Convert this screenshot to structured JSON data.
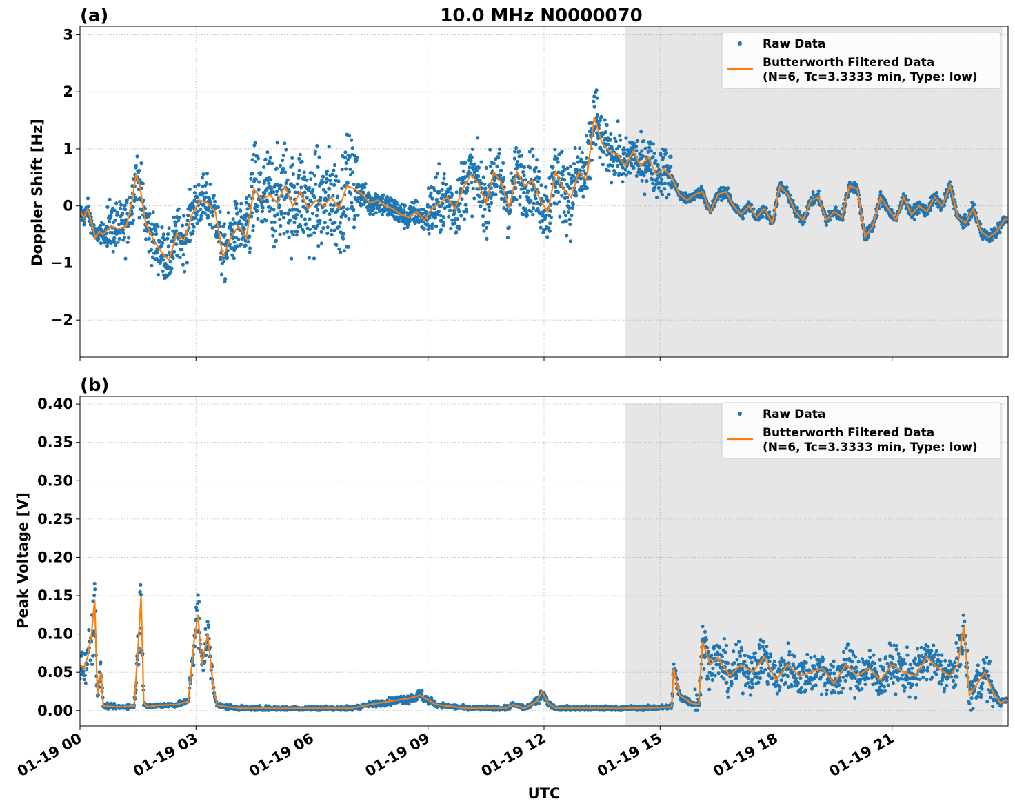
{
  "figure": {
    "title": "10.0 MHz N0000070",
    "xlabel": "UTC",
    "x_tick_labels": [
      "01-19 00",
      "01-19 03",
      "01-19 06",
      "01-19 09",
      "01-19 12",
      "01-19 15",
      "01-19 18",
      "01-19 21"
    ],
    "shaded_region": {
      "start_hour": 14.1,
      "end_hour": 23.85,
      "color": "#e6e6e6"
    },
    "colors": {
      "raw": "#1f77b4",
      "filtered": "#ff7f0e",
      "grid": "#b0b0b0"
    }
  },
  "chart_data": [
    {
      "panel_label": "(a)",
      "type": "scatter",
      "ylabel": "Doppler Shift [Hz]",
      "xlim_hours": [
        0,
        24
      ],
      "ylim": [
        -2.65,
        3.15
      ],
      "y_ticks": [
        -2,
        -1,
        0,
        1,
        2,
        3
      ],
      "y_tick_labels": [
        "−2",
        "−1",
        "0",
        "1",
        "2",
        "3"
      ],
      "legend": {
        "placement": "upper right",
        "raw_label": "Raw Data",
        "filtered_label_1": "Butterworth Filtered Data",
        "filtered_label_2": "(N=6, Tc=3.3333 min, Type: low)"
      },
      "series": [
        {
          "name": "Butterworth Filtered Data",
          "kind": "line",
          "x_hours": [
            0,
            0.1,
            0.2,
            0.3,
            0.4,
            0.5,
            0.6,
            0.8,
            1.0,
            1.2,
            1.35,
            1.45,
            1.55,
            1.7,
            1.9,
            2.1,
            2.3,
            2.5,
            2.7,
            2.9,
            3.1,
            3.3,
            3.5,
            3.7,
            3.9,
            4.1,
            4.3,
            4.5,
            4.7,
            4.9,
            5.1,
            5.3,
            5.5,
            5.7,
            5.9,
            6.1,
            6.3,
            6.5,
            6.7,
            6.9,
            7.1,
            7.3,
            7.5,
            7.7,
            7.9,
            8.1,
            8.3,
            8.5,
            8.7,
            8.9,
            9.1,
            9.3,
            9.5,
            9.7,
            9.9,
            10.1,
            10.3,
            10.5,
            10.7,
            10.9,
            11.1,
            11.3,
            11.5,
            11.7,
            11.9,
            12.1,
            12.3,
            12.5,
            12.7,
            12.9,
            13.1,
            13.3,
            13.5,
            13.7,
            13.9,
            14.1,
            14.3,
            14.5,
            14.7,
            14.9,
            15.1,
            15.3,
            15.5,
            15.7,
            15.9,
            16.1,
            16.3,
            16.5,
            16.7,
            16.9,
            17.1,
            17.3,
            17.5,
            17.7,
            17.9,
            18.1,
            18.3,
            18.5,
            18.7,
            18.9,
            19.1,
            19.3,
            19.5,
            19.7,
            19.9,
            20.1,
            20.3,
            20.5,
            20.7,
            20.9,
            21.1,
            21.3,
            21.5,
            21.7,
            21.9,
            22.1,
            22.3,
            22.5,
            22.7,
            22.9,
            23.1,
            23.3,
            23.5,
            23.7,
            23.9,
            24.0
          ],
          "values": [
            -0.1,
            -0.2,
            -0.05,
            -0.3,
            -0.55,
            -0.45,
            -0.5,
            -0.35,
            -0.4,
            -0.35,
            0.1,
            0.55,
            0.35,
            -0.3,
            -0.6,
            -0.8,
            -0.95,
            -0.5,
            -0.6,
            -0.15,
            0.1,
            0.05,
            -0.1,
            -0.9,
            -0.55,
            -0.35,
            -0.55,
            0.3,
            0.1,
            0.2,
            0.05,
            0.35,
            0.0,
            0.25,
            -0.05,
            0.1,
            0.0,
            0.15,
            -0.05,
            0.35,
            0.3,
            0.2,
            0.05,
            0.1,
            0.0,
            -0.05,
            -0.15,
            -0.2,
            -0.1,
            -0.25,
            -0.05,
            0.05,
            0.15,
            -0.05,
            0.3,
            0.55,
            0.4,
            0.05,
            0.6,
            0.4,
            -0.05,
            0.6,
            0.35,
            0.45,
            0.1,
            -0.1,
            0.6,
            0.3,
            0.15,
            0.6,
            0.45,
            1.55,
            1.1,
            0.95,
            0.9,
            0.7,
            0.95,
            0.7,
            0.85,
            0.55,
            0.65,
            0.5,
            0.2,
            0.1,
            0.2,
            0.25,
            -0.1,
            0.2,
            0.25,
            0.0,
            -0.15,
            0.0,
            -0.2,
            -0.05,
            -0.3,
            0.35,
            0.2,
            -0.1,
            -0.25,
            0.1,
            0.15,
            -0.25,
            -0.1,
            -0.2,
            0.35,
            0.3,
            -0.55,
            -0.35,
            0.15,
            -0.05,
            -0.25,
            0.15,
            -0.15,
            0.0,
            -0.1,
            0.15,
            0.0,
            0.35,
            -0.2,
            -0.3,
            -0.05,
            -0.45,
            -0.55,
            -0.45,
            -0.25,
            -0.2
          ]
        }
      ]
    },
    {
      "panel_label": "(b)",
      "type": "scatter",
      "ylabel": "Peak Voltage [V]",
      "xlim_hours": [
        0,
        24
      ],
      "ylim": [
        -0.02,
        0.41
      ],
      "y_ticks": [
        0.0,
        0.05,
        0.1,
        0.15,
        0.2,
        0.25,
        0.3,
        0.35,
        0.4
      ],
      "y_tick_labels": [
        "0.00",
        "0.05",
        "0.10",
        "0.15",
        "0.20",
        "0.25",
        "0.30",
        "0.35",
        "0.40"
      ],
      "legend": {
        "placement": "upper right",
        "raw_label": "Raw Data",
        "filtered_label_1": "Butterworth Filtered Data",
        "filtered_label_2": "(N=6, Tc=3.3333 min, Type: low)"
      },
      "series": [
        {
          "name": "Butterworth Filtered Data",
          "kind": "line",
          "x_hours": [
            0,
            0.1,
            0.2,
            0.3,
            0.38,
            0.45,
            0.5,
            0.55,
            0.6,
            1.0,
            1.4,
            1.5,
            1.58,
            1.65,
            1.75,
            2.0,
            2.5,
            2.8,
            2.95,
            3.05,
            3.15,
            3.3,
            3.45,
            3.55,
            3.8,
            4.2,
            5.0,
            6.0,
            7.0,
            7.5,
            8.0,
            8.5,
            8.8,
            9.2,
            10.0,
            11.0,
            11.2,
            11.5,
            11.8,
            11.95,
            12.1,
            12.3,
            13.0,
            14.0,
            15.0,
            15.3,
            15.35,
            15.5,
            15.8,
            16.0,
            16.1,
            16.3,
            16.5,
            16.8,
            17.1,
            17.4,
            17.7,
            18.0,
            18.3,
            18.6,
            18.9,
            19.2,
            19.5,
            19.8,
            20.1,
            20.4,
            20.7,
            21.0,
            21.3,
            21.6,
            21.9,
            22.2,
            22.5,
            22.7,
            22.85,
            23.0,
            23.2,
            23.4,
            23.6,
            23.8,
            24.0
          ],
          "values": [
            0.06,
            0.055,
            0.07,
            0.1,
            0.145,
            0.02,
            0.04,
            0.05,
            0.006,
            0.005,
            0.006,
            0.08,
            0.15,
            0.01,
            0.005,
            0.007,
            0.008,
            0.012,
            0.09,
            0.125,
            0.06,
            0.1,
            0.03,
            0.007,
            0.005,
            0.003,
            0.003,
            0.003,
            0.003,
            0.008,
            0.012,
            0.016,
            0.02,
            0.008,
            0.003,
            0.003,
            0.008,
            0.003,
            0.012,
            0.025,
            0.01,
            0.003,
            0.003,
            0.003,
            0.004,
            0.005,
            0.055,
            0.02,
            0.01,
            0.008,
            0.09,
            0.06,
            0.07,
            0.045,
            0.06,
            0.05,
            0.07,
            0.04,
            0.06,
            0.045,
            0.05,
            0.055,
            0.035,
            0.06,
            0.045,
            0.055,
            0.04,
            0.06,
            0.05,
            0.045,
            0.07,
            0.055,
            0.045,
            0.06,
            0.11,
            0.02,
            0.035,
            0.05,
            0.025,
            0.01,
            0.015
          ]
        }
      ]
    }
  ]
}
